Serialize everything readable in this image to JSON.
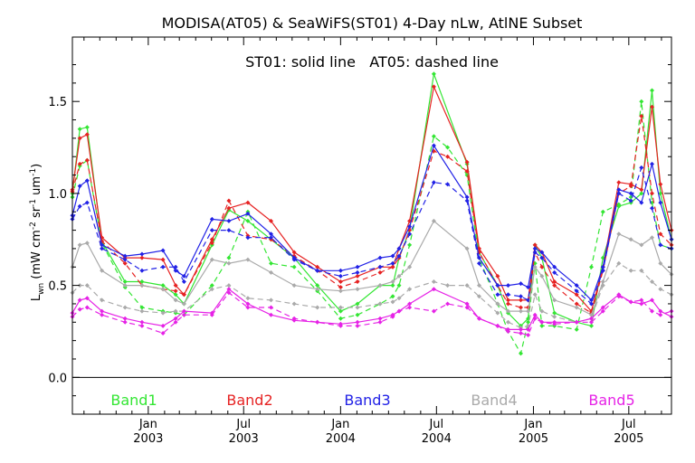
{
  "chart_data": {
    "type": "line",
    "title": "MODISA(AT05) & SeaWiFS(ST01) 4-Day nLw, AtlNE Subset",
    "annotation": "ST01: solid line   AT05: dashed line",
    "ylabel": "L",
    "ylabel_sub": "wn",
    "ylabel_units": " (mW cm",
    "ylabel_exp1": "-2",
    "ylabel_mid1": " sr",
    "ylabel_exp2": "-1",
    "ylabel_mid2": " um",
    "ylabel_exp3": "-1",
    "ylabel_end": ")",
    "xlim": [
      "2002-08-10",
      "2005-09-20"
    ],
    "ylim": [
      -0.2,
      1.85
    ],
    "yticks": [
      0.0,
      0.5,
      1.0,
      1.5
    ],
    "ytick_labels": [
      "0.0",
      "0.5",
      "1.0",
      "1.5"
    ],
    "xticks": [
      {
        "date": "2003-01-01",
        "month": "Jan",
        "year": "2003"
      },
      {
        "date": "2003-07-01",
        "month": "Jul",
        "year": "2003"
      },
      {
        "date": "2004-01-01",
        "month": "Jan",
        "year": "2004"
      },
      {
        "date": "2004-07-01",
        "month": "Jul",
        "year": "2004"
      },
      {
        "date": "2005-01-01",
        "month": "Jan",
        "year": "2005"
      },
      {
        "date": "2005-07-01",
        "month": "Jul",
        "year": "2005"
      }
    ],
    "minor_xticks": [
      "2002-09-01",
      "2002-10-01",
      "2002-11-01",
      "2002-12-01",
      "2003-02-01",
      "2003-03-01",
      "2003-04-01",
      "2003-05-01",
      "2003-06-01",
      "2003-08-01",
      "2003-09-01",
      "2003-10-01",
      "2003-11-01",
      "2003-12-01",
      "2004-02-01",
      "2004-03-01",
      "2004-04-01",
      "2004-05-01",
      "2004-06-01",
      "2004-08-01",
      "2004-09-01",
      "2004-10-01",
      "2004-11-01",
      "2004-12-01",
      "2005-02-01",
      "2005-03-01",
      "2005-04-01",
      "2005-05-01",
      "2005-06-01",
      "2005-08-01",
      "2005-09-01"
    ],
    "zero_line": 0.0,
    "legend": {
      "placement": "bottom",
      "entries": [
        {
          "label": "Band1",
          "color": "#33e633"
        },
        {
          "label": "Band2",
          "color": "#e62222"
        },
        {
          "label": "Band3",
          "color": "#2222e6"
        },
        {
          "label": "Band4",
          "color": "#aaaaaa"
        },
        {
          "label": "Band5",
          "color": "#e622e6"
        }
      ]
    },
    "series": [
      {
        "name": "Band1",
        "color": "#33e633",
        "style": "solid",
        "x": [
          "2002-08-10",
          "2002-08-24",
          "2002-09-07",
          "2002-10-05",
          "2002-11-18",
          "2002-12-20",
          "2003-01-29",
          "2003-02-22",
          "2003-03-10",
          "2003-05-02",
          "2003-06-03",
          "2003-07-09",
          "2003-08-22",
          "2003-10-05",
          "2003-11-18",
          "2004-01-01",
          "2004-02-02",
          "2004-03-16",
          "2004-04-09",
          "2004-04-21",
          "2004-05-11",
          "2004-06-26",
          "2004-08-28",
          "2004-09-20",
          "2004-10-25",
          "2004-11-14",
          "2004-12-08",
          "2004-12-22",
          "2005-01-04",
          "2005-01-17",
          "2005-02-10",
          "2005-03-24",
          "2005-04-21",
          "2005-05-13",
          "2005-06-12",
          "2005-07-05",
          "2005-07-25",
          "2005-08-14",
          "2005-08-30",
          "2005-09-20"
        ],
        "y": [
          1.0,
          1.35,
          1.36,
          0.74,
          0.52,
          0.52,
          0.5,
          0.45,
          0.4,
          0.72,
          0.91,
          0.85,
          0.75,
          0.65,
          0.5,
          0.36,
          0.4,
          0.5,
          0.5,
          0.65,
          0.8,
          1.65,
          1.16,
          0.68,
          0.5,
          0.35,
          0.28,
          0.32,
          0.72,
          0.65,
          0.35,
          0.3,
          0.28,
          0.65,
          0.93,
          0.95,
          1.0,
          1.56,
          1.0,
          0.75
        ]
      },
      {
        "name": "Band1 AT05",
        "color": "#33e633",
        "style": "dashed",
        "x": [
          "2002-08-10",
          "2002-08-24",
          "2002-09-07",
          "2002-10-05",
          "2002-11-18",
          "2002-12-20",
          "2003-01-29",
          "2003-02-22",
          "2003-03-10",
          "2003-05-02",
          "2003-06-03",
          "2003-07-09",
          "2003-08-22",
          "2003-10-05",
          "2003-11-18",
          "2004-01-01",
          "2004-02-02",
          "2004-03-16",
          "2004-04-09",
          "2004-04-21",
          "2004-05-11",
          "2004-06-26",
          "2004-07-22",
          "2004-08-28",
          "2004-09-20",
          "2004-10-25",
          "2004-11-14",
          "2004-12-08",
          "2004-12-22",
          "2005-01-04",
          "2005-01-17",
          "2005-02-10",
          "2005-03-24",
          "2005-04-21",
          "2005-05-13",
          "2005-06-12",
          "2005-07-05",
          "2005-07-25",
          "2005-08-14",
          "2005-08-30",
          "2005-09-20"
        ],
        "y": [
          0.98,
          1.15,
          1.18,
          0.73,
          0.49,
          0.38,
          0.36,
          0.35,
          0.34,
          0.5,
          0.65,
          0.9,
          0.62,
          0.6,
          0.47,
          0.32,
          0.34,
          0.4,
          0.44,
          0.5,
          0.72,
          1.31,
          1.25,
          1.1,
          0.65,
          0.4,
          0.25,
          0.13,
          0.3,
          0.62,
          0.28,
          0.28,
          0.26,
          0.6,
          0.9,
          0.94,
          0.98,
          1.5,
          0.95,
          0.72,
          0.7
        ]
      },
      {
        "name": "Band2",
        "color": "#e62222",
        "style": "solid",
        "x": [
          "2002-08-10",
          "2002-08-24",
          "2002-09-07",
          "2002-10-05",
          "2002-11-18",
          "2002-12-20",
          "2003-01-29",
          "2003-02-22",
          "2003-03-10",
          "2003-05-02",
          "2003-06-03",
          "2003-07-09",
          "2003-08-22",
          "2003-10-05",
          "2003-11-18",
          "2004-01-01",
          "2004-02-02",
          "2004-03-16",
          "2004-04-09",
          "2004-04-21",
          "2004-05-11",
          "2004-06-26",
          "2004-08-28",
          "2004-09-20",
          "2004-10-25",
          "2004-11-14",
          "2004-12-08",
          "2004-12-22",
          "2005-01-04",
          "2005-01-17",
          "2005-02-10",
          "2005-03-24",
          "2005-04-21",
          "2005-05-13",
          "2005-06-12",
          "2005-07-05",
          "2005-07-25",
          "2005-08-14",
          "2005-08-30",
          "2005-09-20"
        ],
        "y": [
          1.02,
          1.3,
          1.32,
          0.76,
          0.65,
          0.65,
          0.64,
          0.5,
          0.45,
          0.75,
          0.92,
          0.95,
          0.85,
          0.68,
          0.6,
          0.52,
          0.55,
          0.6,
          0.6,
          0.7,
          0.85,
          1.58,
          1.17,
          0.7,
          0.55,
          0.42,
          0.42,
          0.42,
          0.72,
          0.68,
          0.52,
          0.45,
          0.36,
          0.6,
          1.06,
          1.05,
          1.02,
          1.47,
          1.05,
          0.8
        ]
      },
      {
        "name": "Band2 AT05",
        "color": "#e62222",
        "style": "dashed",
        "x": [
          "2002-08-10",
          "2002-08-24",
          "2002-09-07",
          "2002-10-05",
          "2002-11-18",
          "2002-12-20",
          "2003-01-29",
          "2003-02-22",
          "2003-03-10",
          "2003-05-02",
          "2003-06-03",
          "2003-07-09",
          "2003-08-22",
          "2003-10-05",
          "2003-11-18",
          "2004-01-01",
          "2004-02-02",
          "2004-03-16",
          "2004-04-09",
          "2004-04-21",
          "2004-05-11",
          "2004-06-26",
          "2004-07-22",
          "2004-08-28",
          "2004-09-20",
          "2004-10-25",
          "2004-11-14",
          "2004-12-08",
          "2004-12-22",
          "2005-01-04",
          "2005-01-17",
          "2005-02-10",
          "2005-03-24",
          "2005-04-21",
          "2005-05-13",
          "2005-06-12",
          "2005-07-05",
          "2005-07-25",
          "2005-08-14",
          "2005-08-30",
          "2005-09-20"
        ],
        "y": [
          1.01,
          1.16,
          1.18,
          0.74,
          0.62,
          0.5,
          0.48,
          0.47,
          0.45,
          0.73,
          0.96,
          0.77,
          0.75,
          0.66,
          0.58,
          0.49,
          0.52,
          0.57,
          0.6,
          0.65,
          0.8,
          1.23,
          1.2,
          1.12,
          0.68,
          0.5,
          0.4,
          0.38,
          0.38,
          0.68,
          0.6,
          0.5,
          0.4,
          0.35,
          0.58,
          1.0,
          1.04,
          1.42,
          1.0,
          0.78,
          0.72
        ]
      },
      {
        "name": "Band3",
        "color": "#2222e6",
        "style": "solid",
        "x": [
          "2002-08-10",
          "2002-08-24",
          "2002-09-07",
          "2002-10-05",
          "2002-11-18",
          "2002-12-20",
          "2003-01-29",
          "2003-02-22",
          "2003-03-10",
          "2003-05-02",
          "2003-06-03",
          "2003-07-09",
          "2003-08-22",
          "2003-10-05",
          "2003-11-18",
          "2004-01-01",
          "2004-02-02",
          "2004-03-16",
          "2004-04-09",
          "2004-04-21",
          "2004-05-11",
          "2004-06-26",
          "2004-08-28",
          "2004-09-20",
          "2004-10-25",
          "2004-11-14",
          "2004-12-08",
          "2004-12-22",
          "2005-01-04",
          "2005-01-17",
          "2005-02-10",
          "2005-03-24",
          "2005-04-21",
          "2005-05-13",
          "2005-06-12",
          "2005-07-05",
          "2005-07-25",
          "2005-08-14",
          "2005-08-30",
          "2005-09-20"
        ],
        "y": [
          0.88,
          1.04,
          1.07,
          0.72,
          0.66,
          0.67,
          0.69,
          0.58,
          0.55,
          0.86,
          0.85,
          0.89,
          0.78,
          0.65,
          0.58,
          0.58,
          0.6,
          0.65,
          0.66,
          0.7,
          0.82,
          1.26,
          0.98,
          0.65,
          0.5,
          0.5,
          0.51,
          0.49,
          0.7,
          0.68,
          0.6,
          0.5,
          0.42,
          0.6,
          1.02,
          1.0,
          0.95,
          1.16,
          0.95,
          0.75
        ]
      },
      {
        "name": "Band3 AT05",
        "color": "#2222e6",
        "style": "dashed",
        "x": [
          "2002-08-10",
          "2002-08-24",
          "2002-09-07",
          "2002-10-05",
          "2002-11-18",
          "2002-12-20",
          "2003-01-29",
          "2003-02-22",
          "2003-03-10",
          "2003-05-02",
          "2003-06-03",
          "2003-07-09",
          "2003-08-22",
          "2003-10-05",
          "2003-11-18",
          "2004-01-01",
          "2004-02-02",
          "2004-03-16",
          "2004-04-09",
          "2004-04-21",
          "2004-05-11",
          "2004-06-26",
          "2004-07-22",
          "2004-08-28",
          "2004-09-20",
          "2004-10-25",
          "2004-11-14",
          "2004-12-08",
          "2004-12-22",
          "2005-01-04",
          "2005-01-17",
          "2005-02-10",
          "2005-03-24",
          "2005-04-21",
          "2005-05-13",
          "2005-06-12",
          "2005-07-05",
          "2005-07-25",
          "2005-08-14",
          "2005-08-30",
          "2005-09-20"
        ],
        "y": [
          0.86,
          0.93,
          0.95,
          0.7,
          0.64,
          0.58,
          0.6,
          0.6,
          0.52,
          0.8,
          0.8,
          0.76,
          0.76,
          0.64,
          0.58,
          0.55,
          0.57,
          0.6,
          0.62,
          0.66,
          0.78,
          1.06,
          1.05,
          0.96,
          0.62,
          0.45,
          0.45,
          0.44,
          0.42,
          0.68,
          0.65,
          0.57,
          0.47,
          0.4,
          0.58,
          1.0,
          0.96,
          1.14,
          0.92,
          0.72,
          0.7
        ]
      },
      {
        "name": "Band4",
        "color": "#aaaaaa",
        "style": "solid",
        "x": [
          "2002-08-10",
          "2002-08-24",
          "2002-09-07",
          "2002-10-05",
          "2002-11-18",
          "2002-12-20",
          "2003-01-29",
          "2003-02-22",
          "2003-03-10",
          "2003-05-02",
          "2003-06-03",
          "2003-07-09",
          "2003-08-22",
          "2003-10-05",
          "2003-11-18",
          "2004-01-01",
          "2004-02-02",
          "2004-03-16",
          "2004-04-09",
          "2004-04-21",
          "2004-05-11",
          "2004-06-26",
          "2004-08-28",
          "2004-09-20",
          "2004-10-25",
          "2004-11-14",
          "2004-12-08",
          "2004-12-22",
          "2005-01-04",
          "2005-01-17",
          "2005-02-10",
          "2005-03-24",
          "2005-04-21",
          "2005-05-13",
          "2005-06-12",
          "2005-07-05",
          "2005-07-25",
          "2005-08-14",
          "2005-08-30",
          "2005-09-20"
        ],
        "y": [
          0.6,
          0.72,
          0.73,
          0.58,
          0.5,
          0.5,
          0.48,
          0.42,
          0.4,
          0.64,
          0.62,
          0.64,
          0.57,
          0.5,
          0.48,
          0.47,
          0.48,
          0.5,
          0.52,
          0.55,
          0.6,
          0.85,
          0.7,
          0.5,
          0.4,
          0.36,
          0.36,
          0.36,
          0.6,
          0.55,
          0.42,
          0.38,
          0.34,
          0.52,
          0.78,
          0.75,
          0.72,
          0.76,
          0.62,
          0.56
        ]
      },
      {
        "name": "Band4 AT05",
        "color": "#aaaaaa",
        "style": "dashed",
        "x": [
          "2002-08-10",
          "2002-08-24",
          "2002-09-07",
          "2002-10-05",
          "2002-11-18",
          "2002-12-20",
          "2003-01-29",
          "2003-02-22",
          "2003-03-10",
          "2003-05-02",
          "2003-06-03",
          "2003-07-09",
          "2003-08-22",
          "2003-10-05",
          "2003-11-18",
          "2004-01-01",
          "2004-02-02",
          "2004-03-16",
          "2004-04-09",
          "2004-04-21",
          "2004-05-11",
          "2004-06-26",
          "2004-07-22",
          "2004-08-28",
          "2004-09-20",
          "2004-10-25",
          "2004-11-14",
          "2004-12-08",
          "2004-12-22",
          "2005-01-04",
          "2005-01-17",
          "2005-02-10",
          "2005-03-24",
          "2005-04-21",
          "2005-05-13",
          "2005-06-12",
          "2005-07-05",
          "2005-07-25",
          "2005-08-14",
          "2005-08-30",
          "2005-09-20"
        ],
        "y": [
          0.46,
          0.5,
          0.5,
          0.42,
          0.38,
          0.36,
          0.35,
          0.36,
          0.36,
          0.48,
          0.5,
          0.43,
          0.42,
          0.4,
          0.38,
          0.38,
          0.38,
          0.4,
          0.41,
          0.43,
          0.48,
          0.52,
          0.5,
          0.5,
          0.44,
          0.35,
          0.3,
          0.27,
          0.28,
          0.45,
          0.36,
          0.33,
          0.3,
          0.32,
          0.5,
          0.62,
          0.58,
          0.58,
          0.52,
          0.48,
          0.45
        ]
      },
      {
        "name": "Band5",
        "color": "#e622e6",
        "style": "solid",
        "x": [
          "2002-08-10",
          "2002-08-24",
          "2002-09-07",
          "2002-10-05",
          "2002-11-18",
          "2002-12-20",
          "2003-01-29",
          "2003-02-22",
          "2003-03-10",
          "2003-05-02",
          "2003-06-03",
          "2003-07-09",
          "2003-08-22",
          "2003-10-05",
          "2003-11-18",
          "2004-01-01",
          "2004-02-02",
          "2004-03-16",
          "2004-04-09",
          "2004-04-21",
          "2004-05-11",
          "2004-06-26",
          "2004-08-28",
          "2004-09-20",
          "2004-10-25",
          "2004-11-14",
          "2004-12-08",
          "2004-12-22",
          "2005-01-04",
          "2005-01-17",
          "2005-02-10",
          "2005-03-24",
          "2005-04-21",
          "2005-05-13",
          "2005-06-12",
          "2005-07-05",
          "2005-07-25",
          "2005-08-14",
          "2005-08-30",
          "2005-09-20"
        ],
        "y": [
          0.35,
          0.42,
          0.43,
          0.36,
          0.32,
          0.3,
          0.28,
          0.32,
          0.36,
          0.35,
          0.48,
          0.4,
          0.34,
          0.31,
          0.3,
          0.29,
          0.3,
          0.32,
          0.34,
          0.36,
          0.4,
          0.48,
          0.4,
          0.32,
          0.28,
          0.26,
          0.26,
          0.26,
          0.34,
          0.3,
          0.3,
          0.3,
          0.32,
          0.38,
          0.45,
          0.41,
          0.4,
          0.42,
          0.36,
          0.33
        ]
      },
      {
        "name": "Band5 AT05",
        "color": "#e622e6",
        "style": "dashed",
        "x": [
          "2002-08-10",
          "2002-08-24",
          "2002-09-07",
          "2002-10-05",
          "2002-11-18",
          "2002-12-20",
          "2003-01-29",
          "2003-02-22",
          "2003-03-10",
          "2003-05-02",
          "2003-06-03",
          "2003-07-09",
          "2003-08-22",
          "2003-10-05",
          "2003-11-18",
          "2004-01-01",
          "2004-02-02",
          "2004-03-16",
          "2004-04-09",
          "2004-04-21",
          "2004-05-11",
          "2004-06-26",
          "2004-07-22",
          "2004-08-28",
          "2004-09-20",
          "2004-10-25",
          "2004-11-14",
          "2004-12-08",
          "2004-12-22",
          "2005-01-04",
          "2005-01-17",
          "2005-02-10",
          "2005-03-24",
          "2005-04-21",
          "2005-05-13",
          "2005-06-12",
          "2005-07-05",
          "2005-07-25",
          "2005-08-14",
          "2005-08-30",
          "2005-09-20"
        ],
        "y": [
          0.33,
          0.37,
          0.38,
          0.34,
          0.3,
          0.28,
          0.24,
          0.3,
          0.34,
          0.34,
          0.46,
          0.38,
          0.38,
          0.32,
          0.3,
          0.28,
          0.28,
          0.3,
          0.33,
          0.36,
          0.38,
          0.36,
          0.4,
          0.38,
          0.32,
          0.28,
          0.25,
          0.24,
          0.23,
          0.32,
          0.3,
          0.29,
          0.3,
          0.3,
          0.36,
          0.44,
          0.41,
          0.42,
          0.36,
          0.34,
          0.36
        ]
      }
    ]
  }
}
